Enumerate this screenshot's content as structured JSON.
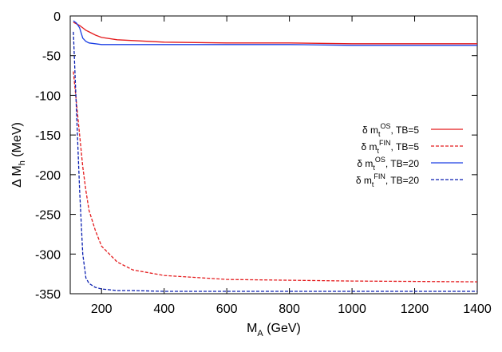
{
  "chart_data": {
    "type": "line",
    "ylabel_parts": [
      "Δ M",
      "h",
      " (MeV)"
    ],
    "xlabel_parts": [
      "M",
      "A",
      " (GeV)"
    ],
    "x": [
      110,
      120,
      130,
      140,
      150,
      160,
      180,
      200,
      250,
      300,
      400,
      600,
      800,
      1000,
      1400
    ],
    "xlim": [
      100,
      1400
    ],
    "xticks": [
      200,
      400,
      600,
      800,
      1000,
      1200,
      1400
    ],
    "ylim": [
      -350,
      0
    ],
    "yticks": [
      0,
      -50,
      -100,
      -150,
      -200,
      -250,
      -300,
      -350
    ],
    "series": [
      {
        "name_parts": [
          "δ m",
          "t",
          "OS",
          ", TB=5"
        ],
        "color": "#e41a1c",
        "dash": false,
        "values": [
          -8,
          -10,
          -12,
          -15,
          -18,
          -20,
          -24,
          -27,
          -30,
          -31,
          -33,
          -34,
          -34,
          -35,
          -35
        ]
      },
      {
        "name_parts": [
          "δ m",
          "t",
          "FIN",
          ", TB=5"
        ],
        "color": "#e41a1c",
        "dash": true,
        "values": [
          -70,
          -110,
          -150,
          -190,
          -220,
          -245,
          -270,
          -290,
          -310,
          -320,
          -327,
          -332,
          -333,
          -334,
          -335
        ]
      },
      {
        "name_parts": [
          "δ m",
          "t",
          "OS",
          ", TB=20"
        ],
        "color": "#1a3fe4",
        "dash": false,
        "values": [
          -6,
          -9,
          -15,
          -28,
          -32,
          -34,
          -35,
          -36,
          -36,
          -36,
          -36,
          -36,
          -36,
          -37,
          -37
        ]
      },
      {
        "name_parts": [
          "δ m",
          "t",
          "FIN",
          ", TB=20"
        ],
        "color": "#0a1fb0",
        "dash": true,
        "values": [
          -20,
          -120,
          -220,
          -300,
          -330,
          -337,
          -342,
          -344,
          -346,
          -346,
          -347,
          -347,
          -347,
          -347,
          -347
        ]
      }
    ]
  }
}
